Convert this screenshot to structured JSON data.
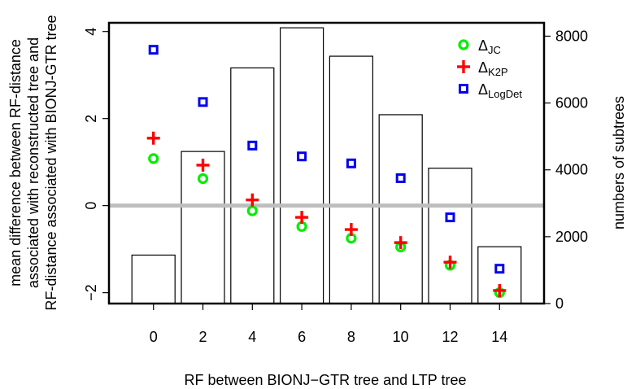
{
  "chart_data": {
    "type": "bar",
    "xlabel": "RF between BIONJ−GTR tree and LTP tree",
    "ylabel_left_lines": [
      "mean difference between RF-distance",
      "associated with reconstructed tree and",
      "RF-distance associated with BIONJ-GTR tree"
    ],
    "ylabel_right": "numbers of subtrees",
    "x": [
      0,
      2,
      4,
      6,
      8,
      10,
      12,
      14
    ],
    "x_ticks": [
      "0",
      "2",
      "4",
      "6",
      "8",
      "10",
      "12",
      "14"
    ],
    "y_left_ticks": [
      -2,
      0,
      2,
      4
    ],
    "y_left_range": [
      -2.25,
      4.2
    ],
    "y_right_ticks": [
      0,
      2000,
      4000,
      6000,
      8000
    ],
    "y_right_range": [
      0,
      8400
    ],
    "bars": {
      "name": "numbers of subtrees",
      "axis": "right",
      "values": [
        1450,
        4550,
        7050,
        8250,
        7400,
        5650,
        4050,
        1700
      ]
    },
    "series": [
      {
        "name": "JC",
        "subscript": true,
        "marker": "circle",
        "color": "#00ee00",
        "values": [
          1.08,
          0.62,
          -0.12,
          -0.48,
          -0.75,
          -0.95,
          -1.37,
          -2.0
        ]
      },
      {
        "name": "K2P",
        "subscript": true,
        "marker": "plus",
        "color": "#ff0000",
        "values": [
          1.55,
          0.93,
          0.13,
          -0.27,
          -0.55,
          -0.85,
          -1.3,
          -1.95
        ]
      },
      {
        "name": "LogDet",
        "subscript": true,
        "marker": "square",
        "color": "#0000ee",
        "values": [
          3.58,
          2.38,
          1.38,
          1.13,
          0.97,
          0.63,
          -0.27,
          -1.45
        ]
      }
    ],
    "legend_symbol": "Δ",
    "legend_position": "top-right",
    "reference_line": {
      "y": 0,
      "color": "#bebebe"
    },
    "grid": false
  }
}
